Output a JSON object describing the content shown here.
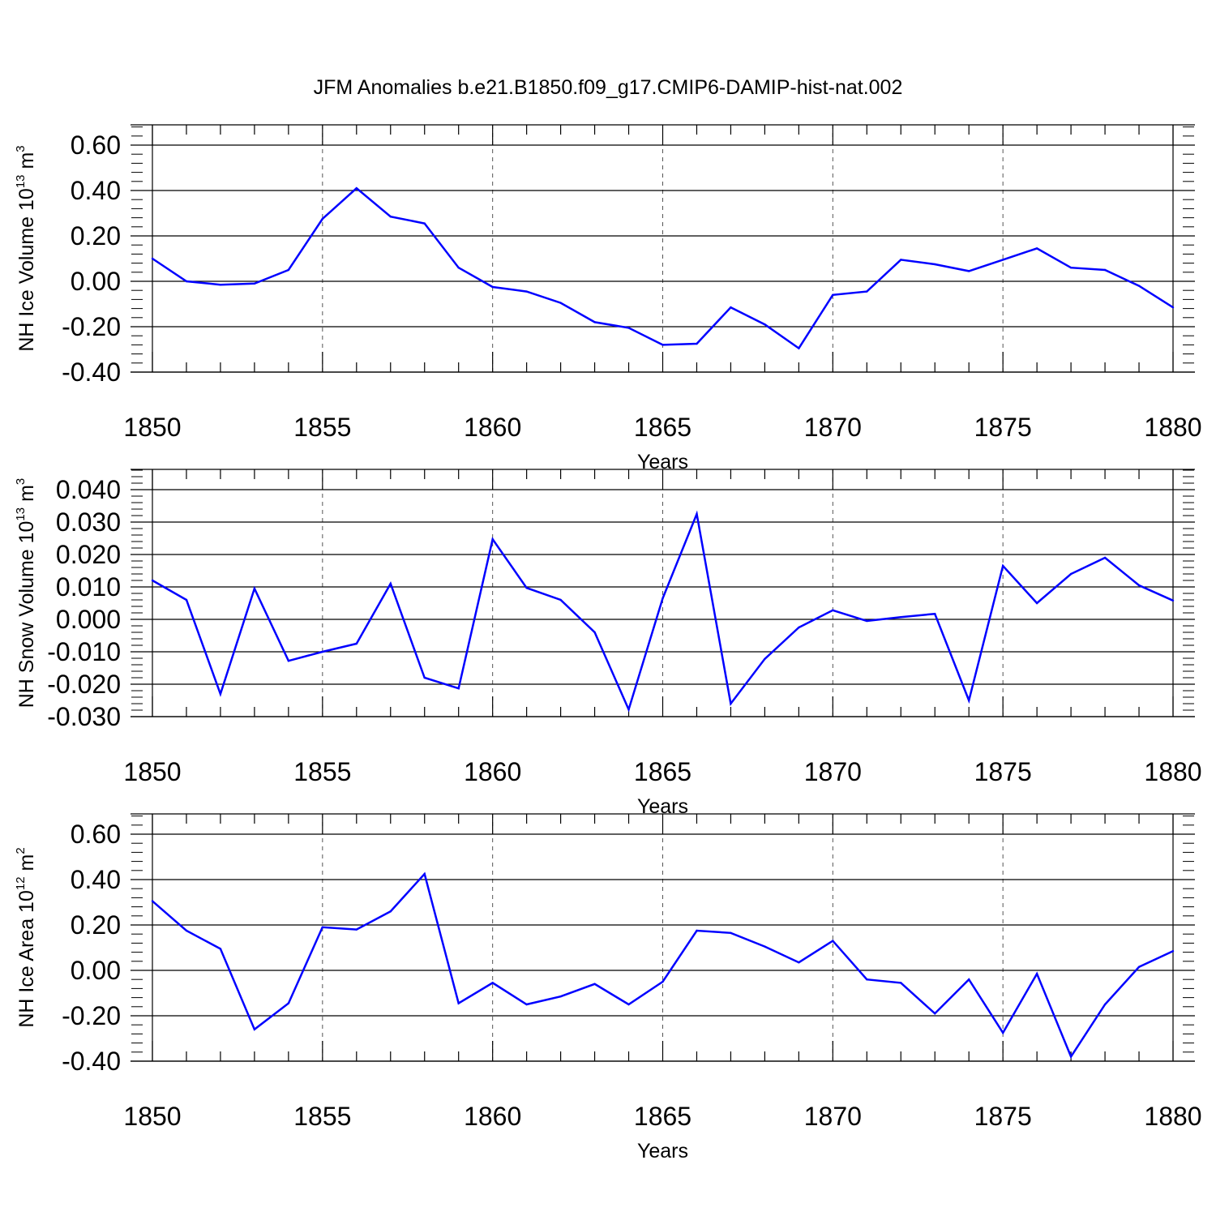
{
  "title": "JFM Anomalies b.e21.B1850.f09_g17.CMIP6-DAMIP-hist-nat.002",
  "colors": {
    "line": "#0000ff",
    "axis": "#000000",
    "grid": "#555555"
  },
  "chart_data": [
    {
      "type": "line",
      "xlabel": "Years",
      "ylabel": {
        "text": "NH Ice Volume 10",
        "sup1": "13",
        "mid": " m",
        "sup2": "3"
      },
      "xlim": [
        1850,
        1880
      ],
      "ylim": [
        -0.4,
        0.7
      ],
      "grid": "dashed vertical at major x ticks",
      "xticks": [
        "1850",
        "1855",
        "1860",
        "1865",
        "1870",
        "1875",
        "1880"
      ],
      "yticks": [
        "0.60",
        "0.40",
        "0.20",
        "0.00",
        "-0.20",
        "-0.40"
      ],
      "x": [
        1850,
        1851,
        1852,
        1853,
        1854,
        1855,
        1856,
        1857,
        1858,
        1859,
        1860,
        1861,
        1862,
        1863,
        1864,
        1865,
        1866,
        1867,
        1868,
        1869,
        1870,
        1871,
        1872,
        1873,
        1874,
        1875,
        1876,
        1877,
        1878,
        1879,
        1880
      ],
      "values": [
        0.1,
        0.0,
        -0.015,
        -0.01,
        0.05,
        0.275,
        0.41,
        0.285,
        0.255,
        0.06,
        -0.025,
        -0.045,
        -0.095,
        -0.18,
        -0.205,
        -0.28,
        -0.275,
        -0.115,
        -0.19,
        -0.295,
        -0.06,
        -0.045,
        0.095,
        0.075,
        0.045,
        0.095,
        0.145,
        0.06,
        0.05,
        -0.02,
        -0.115
      ]
    },
    {
      "type": "line",
      "xlabel": "Years",
      "ylabel": {
        "text": "NH Snow Volume 10",
        "sup1": "13",
        "mid": " m",
        "sup2": "3"
      },
      "xlim": [
        1850,
        1880
      ],
      "ylim": [
        -0.03,
        0.04
      ],
      "grid": "dashed vertical at major x ticks",
      "xticks": [
        "1850",
        "1855",
        "1860",
        "1865",
        "1870",
        "1875",
        "1880"
      ],
      "yticks": [
        "0.040",
        "0.030",
        "0.020",
        "0.010",
        "0.000",
        "-0.010",
        "-0.020",
        "-0.030"
      ],
      "x": [
        1850,
        1851,
        1852,
        1853,
        1854,
        1855,
        1856,
        1857,
        1858,
        1859,
        1860,
        1861,
        1862,
        1863,
        1864,
        1865,
        1866,
        1867,
        1868,
        1869,
        1870,
        1871,
        1872,
        1873,
        1874,
        1875,
        1876,
        1877,
        1878,
        1879,
        1880
      ],
      "values": [
        0.012,
        0.006,
        -0.023,
        0.0095,
        -0.0128,
        -0.01,
        -0.0075,
        0.011,
        -0.018,
        -0.0213,
        0.0247,
        0.0097,
        0.006,
        -0.004,
        -0.0278,
        0.0065,
        0.0325,
        -0.026,
        -0.0122,
        -0.0025,
        0.0028,
        -0.0005,
        0.0007,
        0.0017,
        -0.025,
        0.0165,
        0.005,
        0.014,
        0.019,
        0.0105,
        0.0058
      ]
    },
    {
      "type": "line",
      "xlabel": "Years",
      "ylabel": {
        "text": "NH Ice Area 10",
        "sup1": "12",
        "mid": " m",
        "sup2": "2"
      },
      "xlim": [
        1850,
        1880
      ],
      "ylim": [
        -0.4,
        0.7
      ],
      "grid": "dashed vertical at major x ticks",
      "xticks": [
        "1850",
        "1855",
        "1860",
        "1865",
        "1870",
        "1875",
        "1880"
      ],
      "yticks": [
        "0.60",
        "0.40",
        "0.20",
        "0.00",
        "-0.20",
        "-0.40"
      ],
      "x": [
        1850,
        1851,
        1852,
        1853,
        1854,
        1855,
        1856,
        1857,
        1858,
        1859,
        1860,
        1861,
        1862,
        1863,
        1864,
        1865,
        1866,
        1867,
        1868,
        1869,
        1870,
        1871,
        1872,
        1873,
        1874,
        1875,
        1876,
        1877,
        1878,
        1879,
        1880
      ],
      "values": [
        0.305,
        0.175,
        0.095,
        -0.26,
        -0.145,
        0.19,
        0.18,
        0.26,
        0.425,
        -0.145,
        -0.055,
        -0.15,
        -0.115,
        -0.06,
        -0.15,
        -0.05,
        0.175,
        0.165,
        0.105,
        0.035,
        0.13,
        -0.04,
        -0.055,
        -0.19,
        -0.04,
        -0.275,
        -0.015,
        -0.38,
        -0.15,
        0.015,
        0.085
      ]
    }
  ]
}
